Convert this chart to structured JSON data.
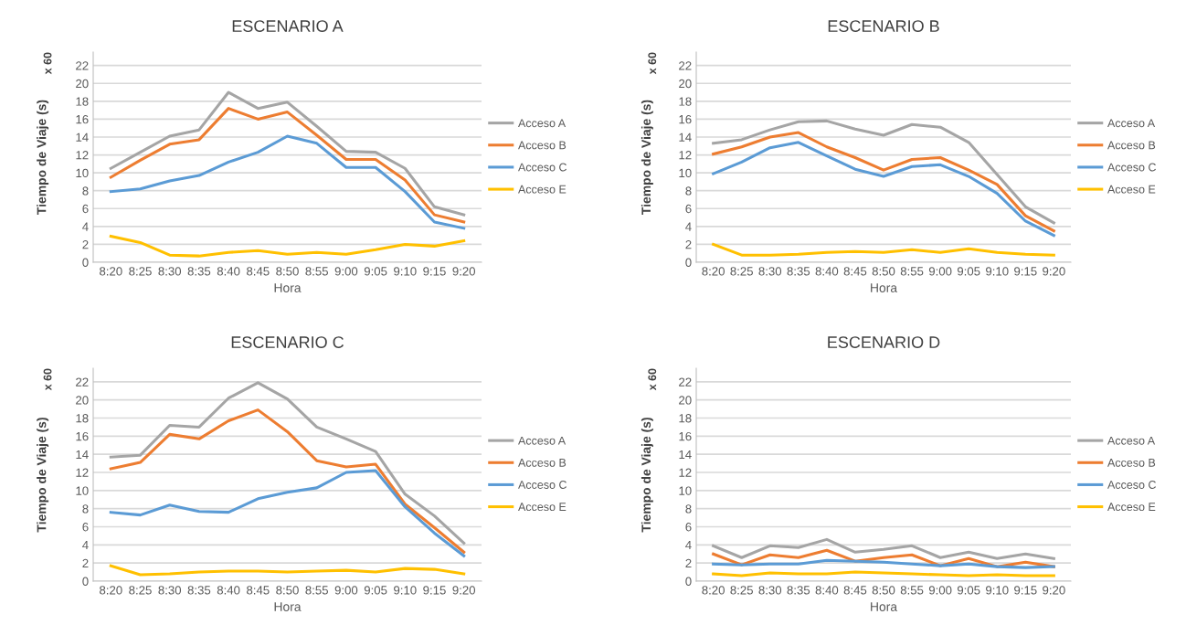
{
  "chart_data": [
    {
      "type": "line",
      "title": "ESCENARIO A",
      "xlabel": "Hora",
      "ylabel": "Tiempo de Viaje (s)",
      "annotations": [
        "x 60"
      ],
      "categories": [
        "8:20",
        "8:25",
        "8:30",
        "8:35",
        "8:40",
        "8:45",
        "8:50",
        "8:55",
        "9:00",
        "9:05",
        "9:10",
        "9:15",
        "9:20"
      ],
      "ylim": [
        0,
        23.5
      ],
      "yticks": [
        0,
        2,
        4,
        6,
        8,
        10,
        12,
        14,
        16,
        18,
        20,
        22
      ],
      "grid": "y",
      "legend": "right",
      "series": [
        {
          "name": "Acceso A",
          "color": "#a5a5a5",
          "values": [
            10.5,
            12.3,
            14.1,
            14.8,
            19.0,
            17.2,
            17.9,
            15.2,
            12.4,
            12.3,
            10.5,
            6.2,
            5.3
          ]
        },
        {
          "name": "Acceso B",
          "color": "#ed7d31",
          "values": [
            9.5,
            11.4,
            13.2,
            13.7,
            17.2,
            16.0,
            16.8,
            14.2,
            11.5,
            11.5,
            9.2,
            5.3,
            4.5
          ]
        },
        {
          "name": "Acceso C",
          "color": "#5b9bd5",
          "values": [
            7.9,
            8.2,
            9.1,
            9.7,
            11.2,
            12.3,
            14.1,
            13.3,
            10.6,
            10.6,
            7.9,
            4.5,
            3.8
          ]
        },
        {
          "name": "Acceso E",
          "color": "#ffc000",
          "values": [
            2.9,
            2.2,
            0.8,
            0.7,
            1.1,
            1.3,
            0.9,
            1.1,
            0.9,
            1.4,
            2.0,
            1.8,
            2.4
          ]
        }
      ]
    },
    {
      "type": "line",
      "title": "ESCENARIO B",
      "xlabel": "Hora",
      "ylabel": "Tiempo de Viaje (s)",
      "annotations": [
        "x 60"
      ],
      "categories": [
        "8:20",
        "8:25",
        "8:30",
        "8:35",
        "8:40",
        "8:45",
        "8:50",
        "8:55",
        "9:00",
        "9:05",
        "9:10",
        "9:15",
        "9:20"
      ],
      "ylim": [
        0,
        23.5
      ],
      "yticks": [
        0,
        2,
        4,
        6,
        8,
        10,
        12,
        14,
        16,
        18,
        20,
        22
      ],
      "grid": "y",
      "legend": "right",
      "series": [
        {
          "name": "Acceso A",
          "color": "#a5a5a5",
          "values": [
            13.3,
            13.7,
            14.8,
            15.7,
            15.8,
            14.9,
            14.2,
            15.4,
            15.1,
            13.4,
            9.8,
            6.2,
            4.4
          ]
        },
        {
          "name": "Acceso B",
          "color": "#ed7d31",
          "values": [
            12.1,
            12.9,
            14.0,
            14.5,
            12.9,
            11.7,
            10.3,
            11.5,
            11.7,
            10.3,
            8.7,
            5.2,
            3.5
          ]
        },
        {
          "name": "Acceso C",
          "color": "#5b9bd5",
          "values": [
            9.9,
            11.2,
            12.8,
            13.4,
            11.9,
            10.4,
            9.6,
            10.7,
            10.9,
            9.6,
            7.7,
            4.6,
            3.0
          ]
        },
        {
          "name": "Acceso E",
          "color": "#ffc000",
          "values": [
            2.0,
            0.8,
            0.8,
            0.9,
            1.1,
            1.2,
            1.1,
            1.4,
            1.1,
            1.5,
            1.1,
            0.9,
            0.8
          ]
        }
      ]
    },
    {
      "type": "line",
      "title": "ESCENARIO C",
      "xlabel": "Hora",
      "ylabel": "Tiempo de Viaje (s)",
      "annotations": [
        "x 60"
      ],
      "categories": [
        "8:20",
        "8:25",
        "8:30",
        "8:35",
        "8:40",
        "8:45",
        "8:50",
        "8:55",
        "9:00",
        "9:05",
        "9:10",
        "9:15",
        "9:20"
      ],
      "ylim": [
        0,
        23.5
      ],
      "yticks": [
        0,
        2,
        4,
        6,
        8,
        10,
        12,
        14,
        16,
        18,
        20,
        22
      ],
      "grid": "y",
      "legend": "right",
      "series": [
        {
          "name": "Acceso A",
          "color": "#a5a5a5",
          "values": [
            13.7,
            13.9,
            17.2,
            17.0,
            20.2,
            21.9,
            20.1,
            17.0,
            15.7,
            14.3,
            9.6,
            7.2,
            4.2
          ]
        },
        {
          "name": "Acceso B",
          "color": "#ed7d31",
          "values": [
            12.4,
            13.1,
            16.2,
            15.7,
            17.7,
            18.9,
            16.5,
            13.3,
            12.6,
            12.9,
            8.5,
            5.9,
            3.2
          ]
        },
        {
          "name": "Acceso C",
          "color": "#5b9bd5",
          "values": [
            7.6,
            7.3,
            8.4,
            7.7,
            7.6,
            9.1,
            9.8,
            10.3,
            12.0,
            12.2,
            8.2,
            5.3,
            2.8
          ]
        },
        {
          "name": "Acceso E",
          "color": "#ffc000",
          "values": [
            1.7,
            0.7,
            0.8,
            1.0,
            1.1,
            1.1,
            1.0,
            1.1,
            1.2,
            1.0,
            1.4,
            1.3,
            0.8
          ]
        }
      ]
    },
    {
      "type": "line",
      "title": "ESCENARIO D",
      "xlabel": "Hora",
      "ylabel": "Tiempo de Viaje (s)",
      "annotations": [
        "x 60"
      ],
      "categories": [
        "8:20",
        "8:25",
        "8:30",
        "8:35",
        "8:40",
        "8:45",
        "8:50",
        "8:55",
        "9:00",
        "9:05",
        "9:10",
        "9:15",
        "9:20"
      ],
      "ylim": [
        0,
        23.5
      ],
      "yticks": [
        0,
        2,
        4,
        6,
        8,
        10,
        12,
        14,
        16,
        18,
        20,
        22
      ],
      "grid": "y",
      "legend": "right",
      "series": [
        {
          "name": "Acceso A",
          "color": "#a5a5a5",
          "values": [
            3.9,
            2.6,
            3.9,
            3.7,
            4.6,
            3.2,
            3.5,
            3.9,
            2.6,
            3.2,
            2.5,
            3.0,
            2.5
          ]
        },
        {
          "name": "Acceso B",
          "color": "#ed7d31",
          "values": [
            3.0,
            1.8,
            2.9,
            2.6,
            3.4,
            2.2,
            2.6,
            2.9,
            1.7,
            2.5,
            1.6,
            2.1,
            1.6
          ]
        },
        {
          "name": "Acceso C",
          "color": "#5b9bd5",
          "values": [
            1.9,
            1.8,
            1.9,
            1.9,
            2.3,
            2.2,
            2.1,
            1.9,
            1.7,
            1.9,
            1.6,
            1.5,
            1.6
          ]
        },
        {
          "name": "Acceso E",
          "color": "#ffc000",
          "values": [
            0.8,
            0.6,
            0.9,
            0.8,
            0.8,
            1.0,
            0.9,
            0.8,
            0.7,
            0.6,
            0.7,
            0.6,
            0.6
          ]
        }
      ]
    }
  ]
}
